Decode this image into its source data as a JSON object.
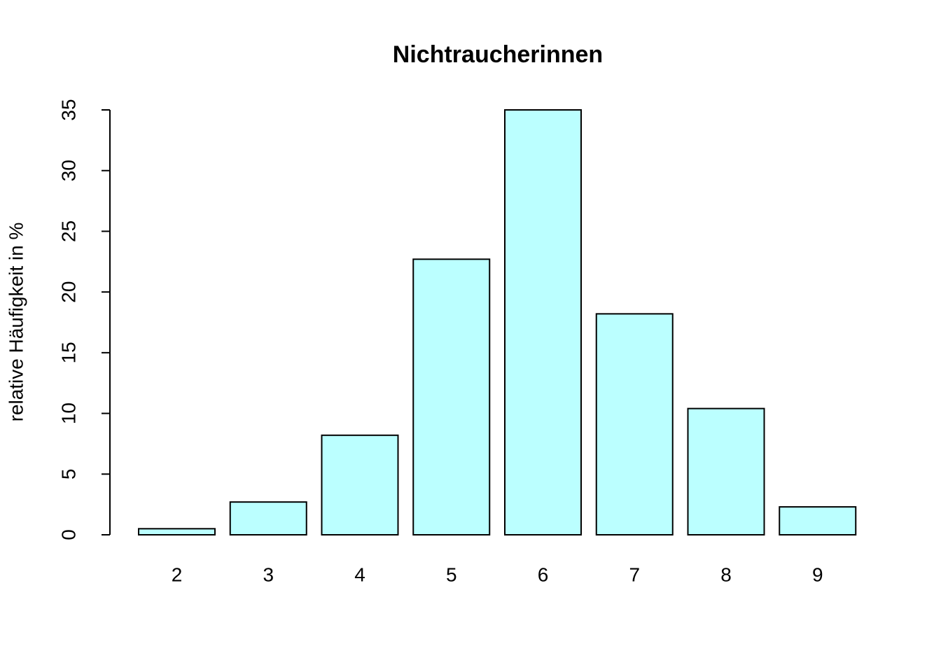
{
  "chart_data": {
    "type": "bar",
    "title": "Nichtraucherinnen",
    "y_label": "relative Häufigkeit in %",
    "categories": [
      "2",
      "3",
      "4",
      "5",
      "6",
      "7",
      "8",
      "9"
    ],
    "values": [
      0.5,
      2.7,
      8.2,
      22.7,
      35,
      18.2,
      10.4,
      2.3
    ],
    "color": "#bbffff",
    "ylim": [
      0,
      35
    ],
    "yticks": [
      0,
      5,
      10,
      15,
      20,
      25,
      30,
      35
    ],
    "grid": false
  }
}
